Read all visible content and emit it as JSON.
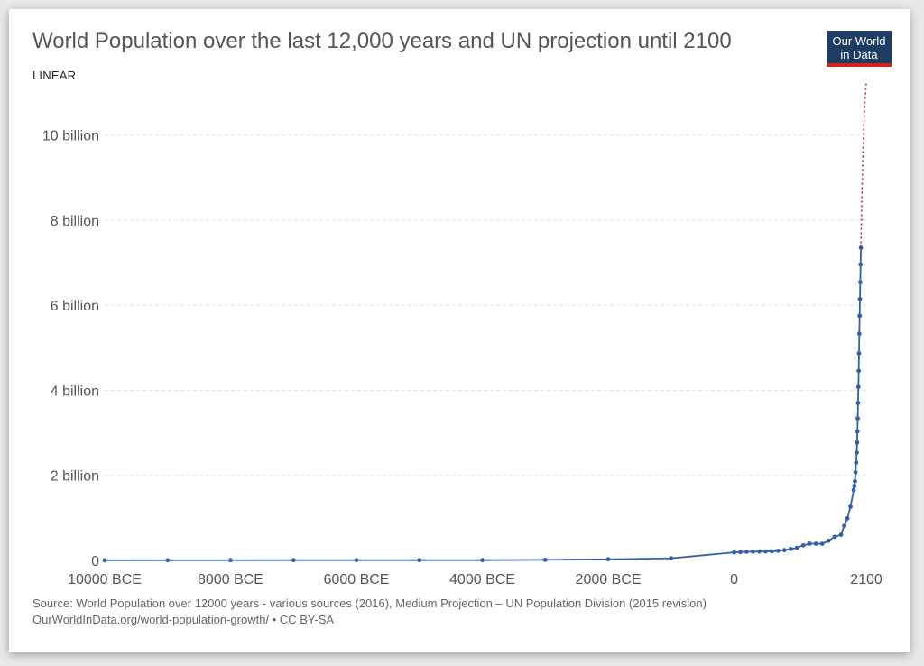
{
  "header": {
    "title": "World Population over the last 12,000 years and UN projection until 2100",
    "scale_toggle": "LINEAR",
    "logo_line1": "Our World",
    "logo_line2": "in Data"
  },
  "footer": {
    "source": "Source: World Population over 12000 years - various sources (2016), Medium Projection – UN Population Division (2015 revision)",
    "link": "OurWorldInData.org/world-population-growth/",
    "license": "• CC BY-SA"
  },
  "colors": {
    "series_historical": "#3360a9",
    "series_projection": "#c0222b",
    "gridline": "#dddddd",
    "axis_text": "#555555"
  },
  "chart_data": {
    "type": "line",
    "title": "World Population over the last 12,000 years and UN projection until 2100",
    "xlabel": "",
    "ylabel": "",
    "xlim": [
      -10000,
      2100
    ],
    "ylim": [
      0,
      11200000000
    ],
    "grid": "horizontal dashed",
    "x_ticks": [
      {
        "value": -10000,
        "label": "10000 BCE"
      },
      {
        "value": -8000,
        "label": "8000 BCE"
      },
      {
        "value": -6000,
        "label": "6000 BCE"
      },
      {
        "value": -4000,
        "label": "4000 BCE"
      },
      {
        "value": -2000,
        "label": "2000 BCE"
      },
      {
        "value": 0,
        "label": "0"
      },
      {
        "value": 2100,
        "label": "2100"
      }
    ],
    "y_ticks": [
      {
        "value": 0,
        "label": "0"
      },
      {
        "value": 2000000000,
        "label": "2 billion"
      },
      {
        "value": 4000000000,
        "label": "4 billion"
      },
      {
        "value": 6000000000,
        "label": "6 billion"
      },
      {
        "value": 8000000000,
        "label": "8 billion"
      },
      {
        "value": 10000000000,
        "label": "10 billion"
      }
    ],
    "series": [
      {
        "key": "historical",
        "style": "solid line with markers",
        "points": [
          [
            -10000,
            4000000
          ],
          [
            -9000,
            5000000
          ],
          [
            -8000,
            5000000
          ],
          [
            -7000,
            7000000
          ],
          [
            -6000,
            7000000
          ],
          [
            -5000,
            7000000
          ],
          [
            -4000,
            7000000
          ],
          [
            -3000,
            14000000
          ],
          [
            -2000,
            27000000
          ],
          [
            -1000,
            50000000
          ],
          [
            0,
            188000000
          ],
          [
            100,
            195000000
          ],
          [
            200,
            202000000
          ],
          [
            300,
            205000000
          ],
          [
            400,
            209000000
          ],
          [
            500,
            210000000
          ],
          [
            600,
            213000000
          ],
          [
            700,
            226000000
          ],
          [
            800,
            240000000
          ],
          [
            900,
            269000000
          ],
          [
            1000,
            295000000
          ],
          [
            1100,
            353000000
          ],
          [
            1200,
            393000000
          ],
          [
            1300,
            392000000
          ],
          [
            1400,
            390000000
          ],
          [
            1500,
            461000000
          ],
          [
            1600,
            554000000
          ],
          [
            1700,
            603000000
          ],
          [
            1750,
            814000000
          ],
          [
            1800,
            989000000
          ],
          [
            1850,
            1263000000
          ],
          [
            1900,
            1654000000
          ],
          [
            1910,
            1750000000
          ],
          [
            1920,
            1860000000
          ],
          [
            1930,
            2070000000
          ],
          [
            1940,
            2300000000
          ],
          [
            1950,
            2536000000
          ],
          [
            1955,
            2771000000
          ],
          [
            1960,
            3033000000
          ],
          [
            1965,
            3339000000
          ],
          [
            1970,
            3700000000
          ],
          [
            1975,
            4079000000
          ],
          [
            1980,
            4458000000
          ],
          [
            1985,
            4871000000
          ],
          [
            1990,
            5331000000
          ],
          [
            1995,
            5751000000
          ],
          [
            2000,
            6145000000
          ],
          [
            2005,
            6542000000
          ],
          [
            2010,
            6958000000
          ],
          [
            2015,
            7350000000
          ]
        ]
      },
      {
        "key": "projection",
        "style": "dotted line",
        "points": [
          [
            2015,
            7350000000
          ],
          [
            2020,
            7758000000
          ],
          [
            2030,
            8501000000
          ],
          [
            2040,
            9157000000
          ],
          [
            2050,
            9725000000
          ],
          [
            2060,
            10184000000
          ],
          [
            2070,
            10548000000
          ],
          [
            2080,
            10837000000
          ],
          [
            2090,
            11040000000
          ],
          [
            2100,
            11213000000
          ]
        ]
      }
    ]
  }
}
